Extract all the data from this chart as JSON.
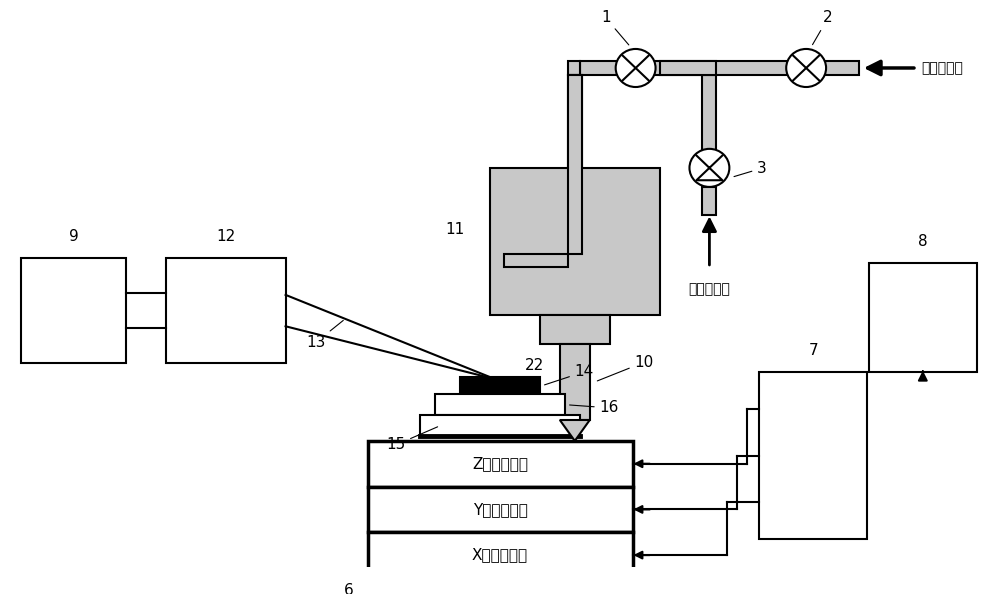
{
  "bg_color": "#ffffff",
  "line_color": "#000000",
  "fill_gray": "#c8c8c8",
  "fig_width": 10.0,
  "fig_height": 5.94,
  "text_buffer": "缓冲气入口",
  "text_reaction": "反应气入口",
  "text_z": "Z电控平移台",
  "text_y": "Y电控平移台",
  "text_x": "X电控平移台"
}
